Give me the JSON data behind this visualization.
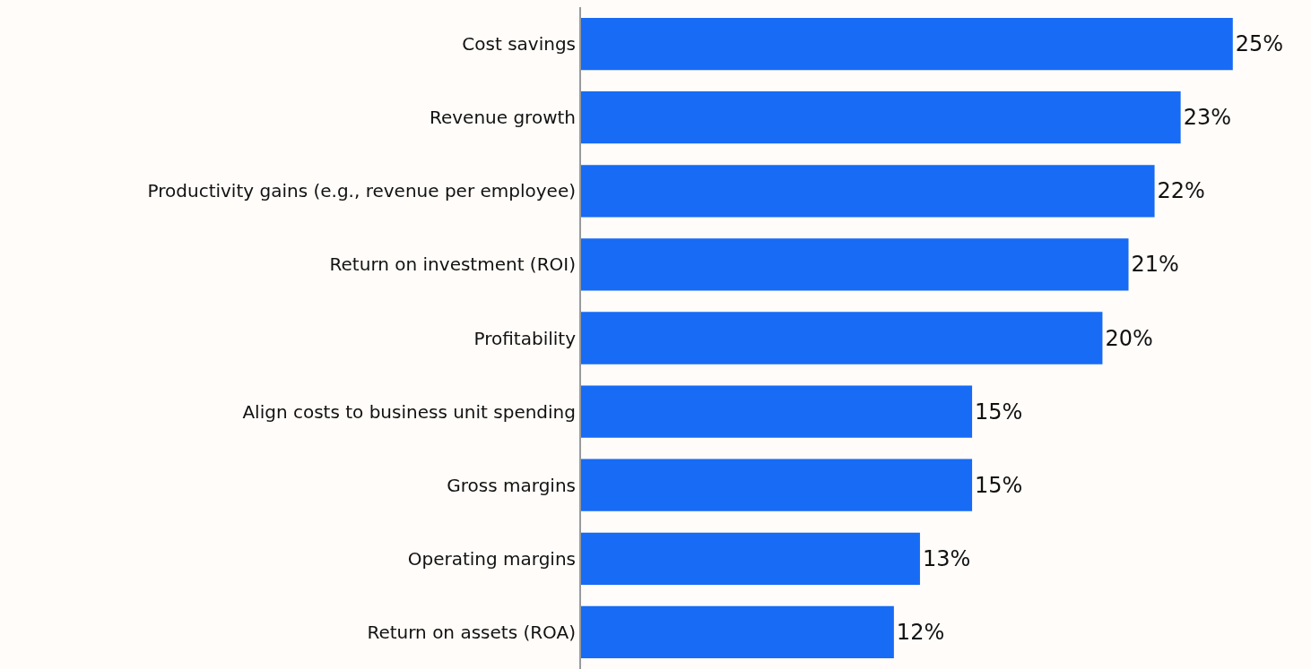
{
  "chart_data": {
    "type": "bar",
    "orientation": "horizontal",
    "categories": [
      "Cost savings",
      "Revenue growth",
      "Productivity gains (e.g., revenue per employee)",
      "Return on investment (ROI)",
      "Profitability",
      "Align costs to business unit spending",
      "Gross margins",
      "Operating margins",
      "Return on assets (ROA)"
    ],
    "values": [
      25,
      23,
      22,
      21,
      20,
      15,
      15,
      13,
      12
    ],
    "value_labels": [
      "25%",
      "23%",
      "22%",
      "21%",
      "20%",
      "15%",
      "15%",
      "13%",
      "12%"
    ],
    "color": "#176bf5",
    "xlim": [
      0,
      28
    ],
    "tick_labels": "y"
  }
}
